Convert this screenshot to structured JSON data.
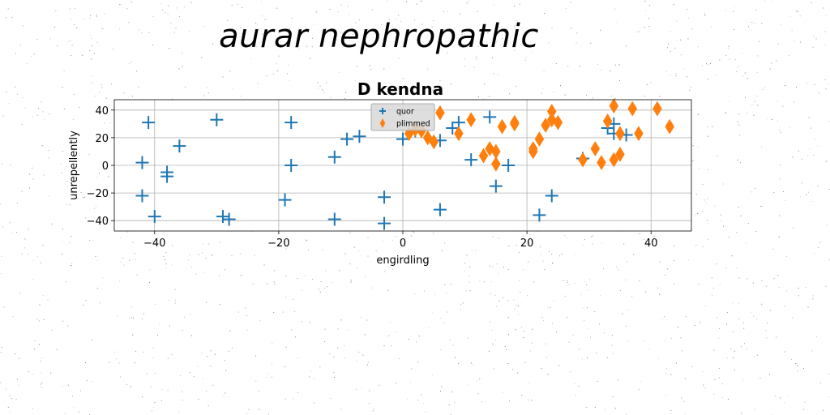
{
  "figure": {
    "suptitle": "aurar nephropathic",
    "background": "#ffffff"
  },
  "chart_data": {
    "type": "scatter",
    "title": "D kendna",
    "xlabel": "engirdling",
    "ylabel": "unrepellently",
    "xlim": [
      -46.5,
      46.5
    ],
    "ylim": [
      -47.5,
      47.5
    ],
    "xticks": [
      -40,
      -20,
      0,
      20,
      40
    ],
    "yticks": [
      -40,
      -20,
      0,
      20,
      40
    ],
    "xtick_labels": [
      "−40",
      "−20",
      "0",
      "20",
      "40"
    ],
    "ytick_labels": [
      "−40",
      "−20",
      "0",
      "20",
      "40"
    ],
    "grid": true,
    "legend_position": "upper center",
    "series": [
      {
        "name": "quor",
        "marker": "plus",
        "color": "#1f77b4",
        "points": [
          [
            -42,
            2
          ],
          [
            -41,
            31
          ],
          [
            -42,
            -22
          ],
          [
            -40,
            -37
          ],
          [
            -38,
            -5
          ],
          [
            -38,
            -8
          ],
          [
            -36,
            14
          ],
          [
            -30,
            33
          ],
          [
            -29,
            -37
          ],
          [
            -28,
            -39
          ],
          [
            -19,
            -25
          ],
          [
            -18,
            31
          ],
          [
            -18,
            0
          ],
          [
            -11,
            6
          ],
          [
            -11,
            -39
          ],
          [
            -9,
            19
          ],
          [
            -7,
            21
          ],
          [
            -3,
            -23
          ],
          [
            -3,
            -42
          ],
          [
            0,
            19
          ],
          [
            2,
            25
          ],
          [
            6,
            18
          ],
          [
            6,
            -32
          ],
          [
            8,
            27
          ],
          [
            9,
            31
          ],
          [
            11,
            4
          ],
          [
            14,
            35
          ],
          [
            15,
            -15
          ],
          [
            17,
            0
          ],
          [
            22,
            -36
          ],
          [
            24,
            -22
          ],
          [
            29,
            5
          ],
          [
            33,
            27
          ],
          [
            34,
            30
          ],
          [
            34,
            23
          ],
          [
            36,
            22
          ]
        ]
      },
      {
        "name": "plimmed",
        "marker": "thin_diamond",
        "color": "#ff7f0e",
        "points": [
          [
            1,
            23
          ],
          [
            2,
            26
          ],
          [
            3,
            25
          ],
          [
            4,
            20
          ],
          [
            5,
            17
          ],
          [
            6,
            38
          ],
          [
            9,
            23
          ],
          [
            11,
            33
          ],
          [
            13,
            7
          ],
          [
            14,
            12
          ],
          [
            15,
            10
          ],
          [
            15,
            1
          ],
          [
            16,
            28
          ],
          [
            18,
            31
          ],
          [
            18,
            30
          ],
          [
            21,
            10
          ],
          [
            21,
            12
          ],
          [
            22,
            19
          ],
          [
            23,
            29
          ],
          [
            24,
            39
          ],
          [
            24,
            33
          ],
          [
            25,
            31
          ],
          [
            29,
            4
          ],
          [
            31,
            12
          ],
          [
            32,
            2
          ],
          [
            33,
            32
          ],
          [
            34,
            4
          ],
          [
            34,
            43
          ],
          [
            35,
            23
          ],
          [
            35,
            8
          ],
          [
            37,
            41
          ],
          [
            38,
            23
          ],
          [
            41,
            41
          ],
          [
            43,
            28
          ]
        ]
      }
    ]
  }
}
